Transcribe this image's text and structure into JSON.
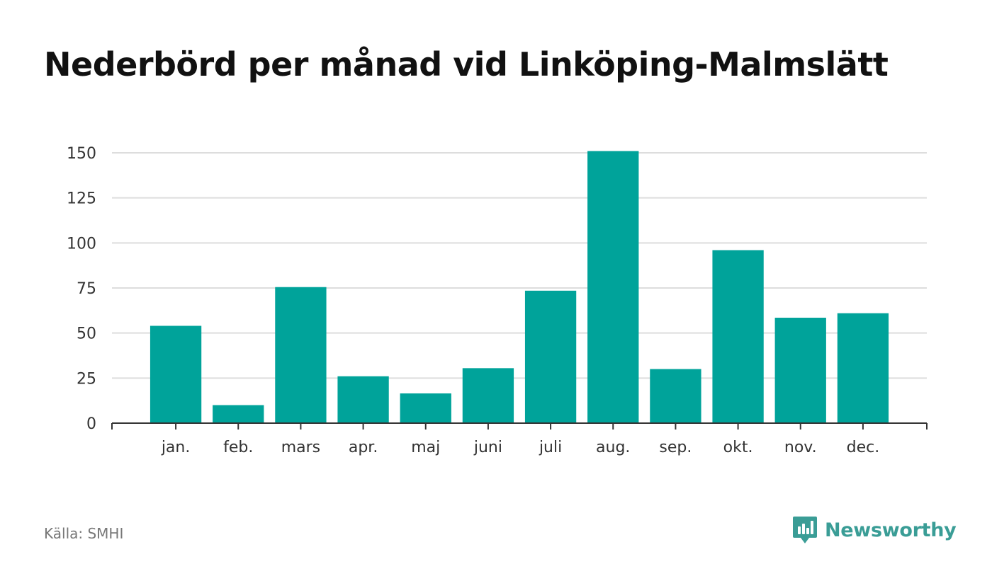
{
  "title": "Nederbörd per månad vid Linköping-Malmslätt",
  "source": "Källa: SMHI",
  "brand": {
    "name": "Newsworthy",
    "icon": "newsworthy-logo-icon",
    "color": "#3a9d96"
  },
  "colors": {
    "bar": "#00a39a",
    "grid": "#dddddd",
    "axis": "#333333"
  },
  "chart_data": {
    "type": "bar",
    "categories": [
      "jan.",
      "feb.",
      "mars",
      "apr.",
      "maj",
      "juni",
      "juli",
      "aug.",
      "sep.",
      "okt.",
      "nov.",
      "dec."
    ],
    "values": [
      54,
      10,
      75.5,
      26,
      16.5,
      30.5,
      73.5,
      151,
      30,
      96,
      58.5,
      61
    ],
    "ylim": [
      0,
      150
    ],
    "yticks": [
      0,
      25,
      50,
      75,
      100,
      125,
      150
    ],
    "grid": true,
    "legend": "none"
  }
}
